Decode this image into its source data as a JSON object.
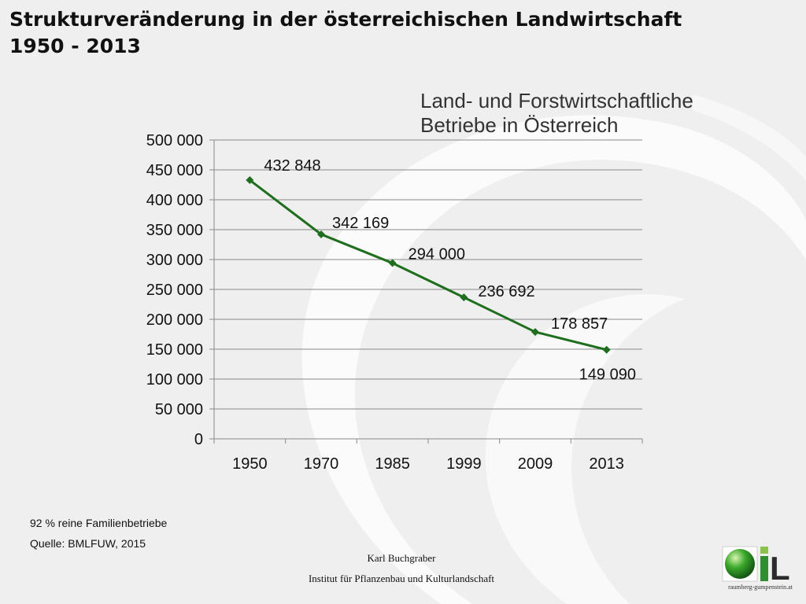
{
  "header": {
    "title_line1": "Strukturveränderung in der österreichischen Landwirtschaft",
    "title_line2": "1950 - 2013"
  },
  "chart_data": {
    "type": "line",
    "title_line1": "Land- und Forstwirtschaftliche",
    "title_line2": "Betriebe in Österreich",
    "categories": [
      "1950",
      "1970",
      "1985",
      "1999",
      "2009",
      "2013"
    ],
    "series": [
      {
        "values": [
          432848,
          342169,
          294000,
          236692,
          178857,
          149090
        ],
        "labels": [
          "432 848",
          "342 169",
          "294 000",
          "236 692",
          "178 857",
          "149 090"
        ],
        "color": "#1e6e1e"
      }
    ],
    "yticks": [
      0,
      50000,
      100000,
      150000,
      200000,
      250000,
      300000,
      350000,
      400000,
      450000,
      500000
    ],
    "ytick_labels": [
      "0",
      "50 000",
      "100 000",
      "150 000",
      "200 000",
      "250 000",
      "300 000",
      "350 000",
      "400 000",
      "450 000",
      "500 000"
    ],
    "ylim": [
      0,
      500000
    ],
    "grid": true,
    "legend": "none",
    "xlabel": "",
    "ylabel": ""
  },
  "notes": {
    "family": "92 % reine Familienbetriebe",
    "source": "Quelle: BMLFUW, 2015"
  },
  "footer": {
    "author": "Karl Buchgraber",
    "institute": "Institut für Pflanzenbau und Kulturlandschaft"
  },
  "logo": {
    "letter": "L",
    "url": "raumberg-gumpenstein.at"
  },
  "colors": {
    "background": "#efefef",
    "swirl": "#ffffff",
    "line": "#1e6e1e",
    "grid": "#8a8a8a"
  }
}
